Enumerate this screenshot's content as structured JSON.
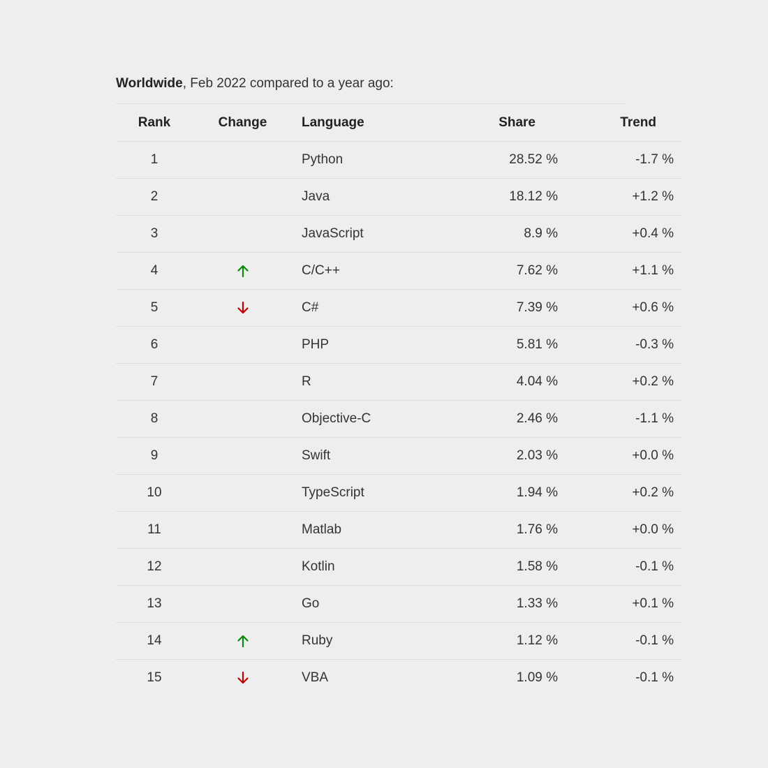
{
  "caption": {
    "bold": "Worldwide",
    "rest": ", Feb 2022 compared to a year ago:"
  },
  "headers": {
    "rank": "Rank",
    "change": "Change",
    "language": "Language",
    "share": "Share",
    "trend": "Trend"
  },
  "colors": {
    "up": "#0a8a0a",
    "down": "#c00000"
  },
  "rows": [
    {
      "rank": "1",
      "change": "",
      "language": "Python",
      "share": "28.52 %",
      "trend": "-1.7 %"
    },
    {
      "rank": "2",
      "change": "",
      "language": "Java",
      "share": "18.12 %",
      "trend": "+1.2 %"
    },
    {
      "rank": "3",
      "change": "",
      "language": "JavaScript",
      "share": "8.9 %",
      "trend": "+0.4 %"
    },
    {
      "rank": "4",
      "change": "up-arrow-icon",
      "language": "C/C++",
      "share": "7.62 %",
      "trend": "+1.1 %"
    },
    {
      "rank": "5",
      "change": "down-arrow-icon",
      "language": "C#",
      "share": "7.39 %",
      "trend": "+0.6 %"
    },
    {
      "rank": "6",
      "change": "",
      "language": "PHP",
      "share": "5.81 %",
      "trend": "-0.3 %"
    },
    {
      "rank": "7",
      "change": "",
      "language": "R",
      "share": "4.04 %",
      "trend": "+0.2 %"
    },
    {
      "rank": "8",
      "change": "",
      "language": "Objective-C",
      "share": "2.46 %",
      "trend": "-1.1 %"
    },
    {
      "rank": "9",
      "change": "",
      "language": "Swift",
      "share": "2.03 %",
      "trend": "+0.0 %"
    },
    {
      "rank": "10",
      "change": "",
      "language": "TypeScript",
      "share": "1.94 %",
      "trend": "+0.2 %"
    },
    {
      "rank": "11",
      "change": "",
      "language": "Matlab",
      "share": "1.76 %",
      "trend": "+0.0 %"
    },
    {
      "rank": "12",
      "change": "",
      "language": "Kotlin",
      "share": "1.58 %",
      "trend": "-0.1 %"
    },
    {
      "rank": "13",
      "change": "",
      "language": "Go",
      "share": "1.33 %",
      "trend": "+0.1 %"
    },
    {
      "rank": "14",
      "change": "up-arrow-icon",
      "language": "Ruby",
      "share": "1.12 %",
      "trend": "-0.1 %"
    },
    {
      "rank": "15",
      "change": "down-arrow-icon",
      "language": "VBA",
      "share": "1.09 %",
      "trend": "-0.1 %"
    }
  ]
}
